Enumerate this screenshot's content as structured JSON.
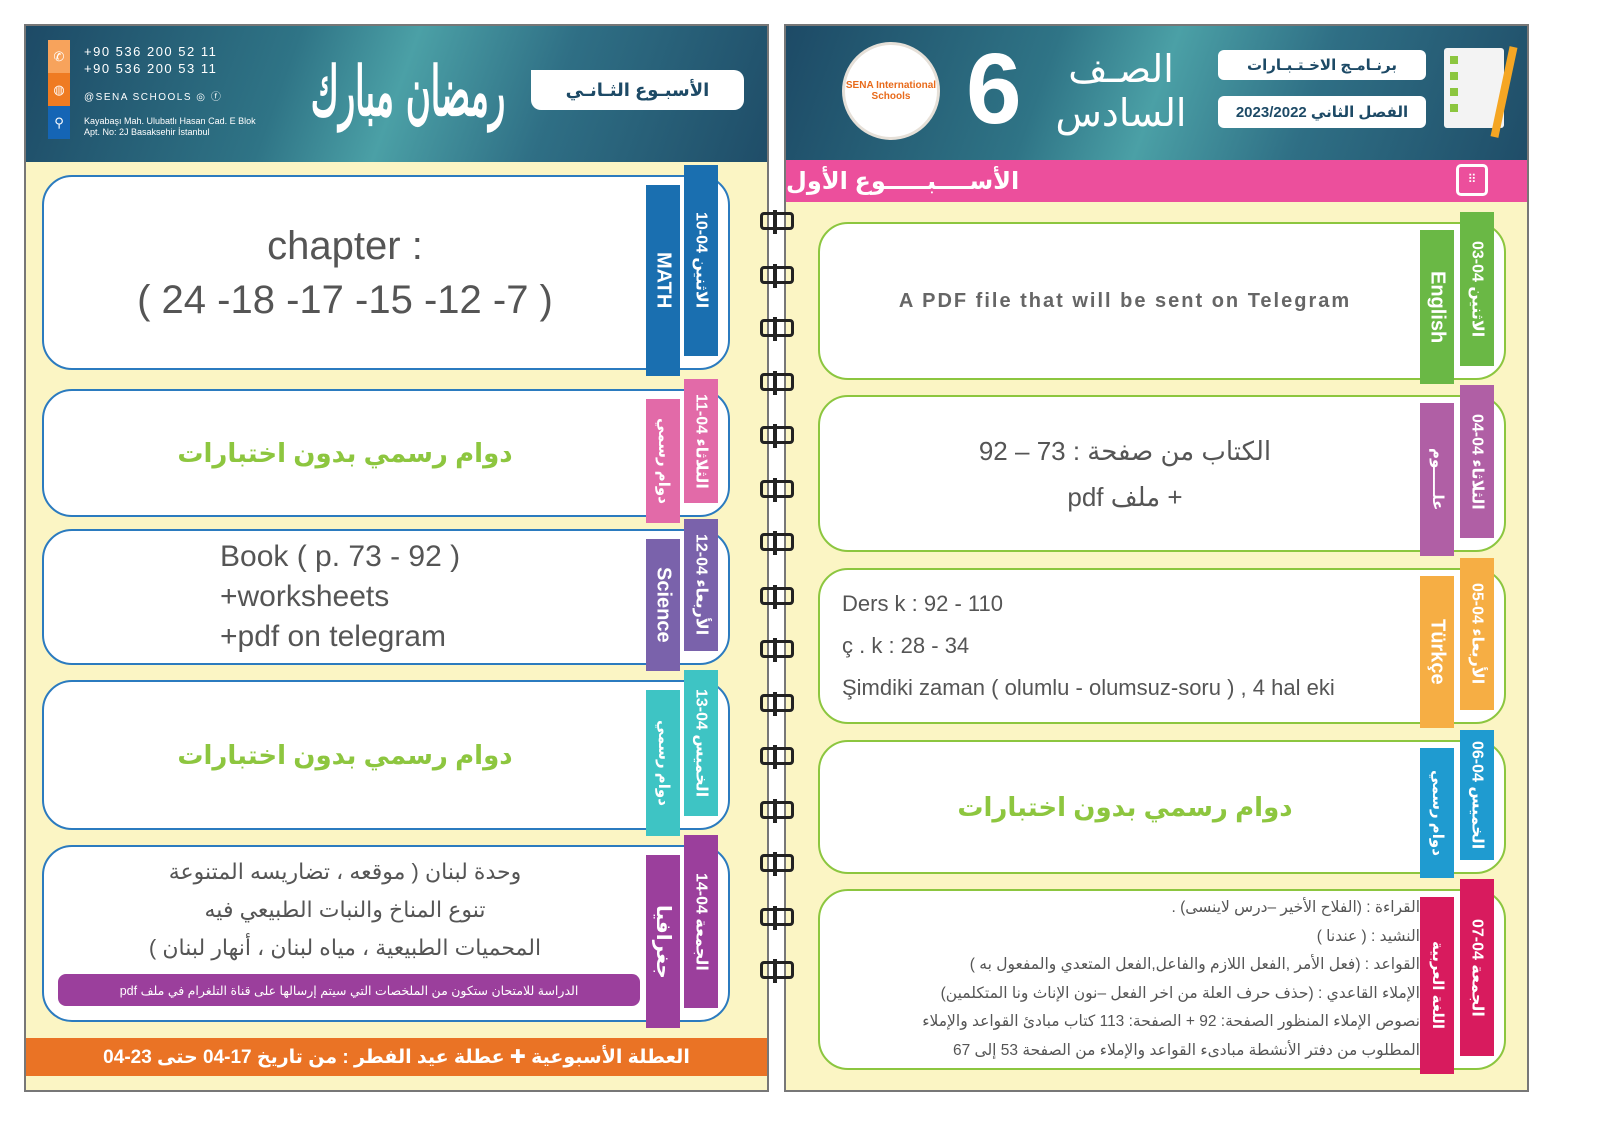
{
  "left": {
    "contact": {
      "phone1": "+90 536 200 52 11",
      "phone2": "+90 536 200 53 11",
      "social": "@SENA SCHOOLS",
      "address1": "Kayabaşı Mah. Ulubatlı Hasan Cad. E Blok",
      "address2": "Apt. No: 2J Basaksehir İstanbul",
      "icons": [
        "phone-icon",
        "globe-icon",
        "location-icon",
        "instagram-icon",
        "facebook-icon"
      ]
    },
    "greeting_logo": "رمضان مبارك",
    "week": "الأسبـوع الثـانـي",
    "rows": [
      {
        "date": "الاثنين 04-10",
        "subject": "MATH",
        "date_color": "#1a6fb0",
        "subject_color": "#1a6fb0",
        "lines": [
          "chapter :",
          "( 24 -18 -17 -15 -12 -7 )"
        ],
        "style": "big"
      },
      {
        "date": "الثلاثاء 04-11",
        "subject": "دوام رسمي",
        "date_color": "#e26aa8",
        "subject_color": "#e26aa8",
        "lines": [
          "دوام رسمي بدون اختبارات"
        ],
        "style": "green"
      },
      {
        "date": "الأربعاء 04-12",
        "subject": "Science",
        "date_color": "#7a62ab",
        "subject_color": "#7a62ab",
        "lines": [
          "Book ( p. 73 -  92 )",
          "+worksheets",
          "+pdf on telegram"
        ],
        "style": "mid"
      },
      {
        "date": "الخميس 04-13",
        "subject": "دوام رسمي",
        "date_color": "#3ec4c4",
        "subject_color": "#3ec4c4",
        "lines": [
          "دوام رسمي بدون اختبارات"
        ],
        "style": "green"
      },
      {
        "date": "الجمعة 04-14",
        "subject": "جغرافيا",
        "date_color": "#9b3f9c",
        "subject_color": "#9b3f9c",
        "lines": [
          "وحدة لبنان ( موقعه ، تضاريسه المتنوعة",
          "تنوع المناخ والنبات الطبيعي فيه",
          "المحميات الطبيعية ، مياه لبنان ، أنهار لبنان )"
        ],
        "style": "ar",
        "note": "الدراسة للامتحان ستكون من الملخصات التي سيتم إرسالها على قناة التلغرام في ملف pdf"
      }
    ],
    "footer": "العطلة الأسبوعية ✚ عطلة عيد الفطر : من تاريخ 17-04 حتى 23-04"
  },
  "right": {
    "school_logo": "SENA International Schools",
    "grade_number": "6",
    "grade_title": "الصـف السادس",
    "program": "برنـامـج الاخـتـبـارات",
    "term": "الفصل الثاني 2023/2022",
    "week": "الأســــبـــــوع الأول",
    "rows": [
      {
        "date": "الاثنين 04-03",
        "subject": "English",
        "date_color": "#6ab845",
        "subject_color": "#6ab845",
        "lines": [
          "A PDF file that will be sent on Telegram"
        ],
        "style": "en"
      },
      {
        "date": "الثلاثاء 04-04",
        "subject": "علـــــوم",
        "date_color": "#b05fa5",
        "subject_color": "#b05fa5",
        "lines": [
          "الكتاب من صفحة :  73 – 92",
          "+ ملف pdf"
        ],
        "style": "arc"
      },
      {
        "date": "الأربعاء 04-05",
        "subject": "Türkçe",
        "date_color": "#f6ae44",
        "subject_color": "#f6ae44",
        "lines": [
          "Ders k  :  92 - 110",
          "ç . k : 28 - 34",
          "Şimdiki zaman ( olumlu - olumsuz-soru ) , 4 hal eki"
        ],
        "style": "tr"
      },
      {
        "date": "الخميس 04-06",
        "subject": "دوام رسمي",
        "date_color": "#1f9bd0",
        "subject_color": "#1f9bd0",
        "lines": [
          "دوام رسمي بدون اختبارات"
        ],
        "style": "green"
      },
      {
        "date": "الجمعة 04-07",
        "subject": "اللغة العربية",
        "date_color": "#d81b5e",
        "subject_color": "#d81b5e",
        "lines": [
          "القراءة : (الفلاح الأخير –درس لاينسى) .",
          "النشيد : ( عندنا )",
          "القواعد : (فعل الأمر ,الفعل اللازم والفاعل,الفعل المتعدي والمفعول به )",
          "الإملاء القاعدي : (حذف حرف العلة من اخر الفعل –نون الإناث ونا المتكلمين)",
          "نصوص الإملاء المنظور الصفحة: 92 + الصفحة: 113  كتاب مبادئ القواعد والإملاء",
          "المطلوب من دفتر الأنشطة مبادىء القواعد والإملاء من الصفحة 53 إلى 67"
        ],
        "style": "arsmall"
      }
    ]
  }
}
